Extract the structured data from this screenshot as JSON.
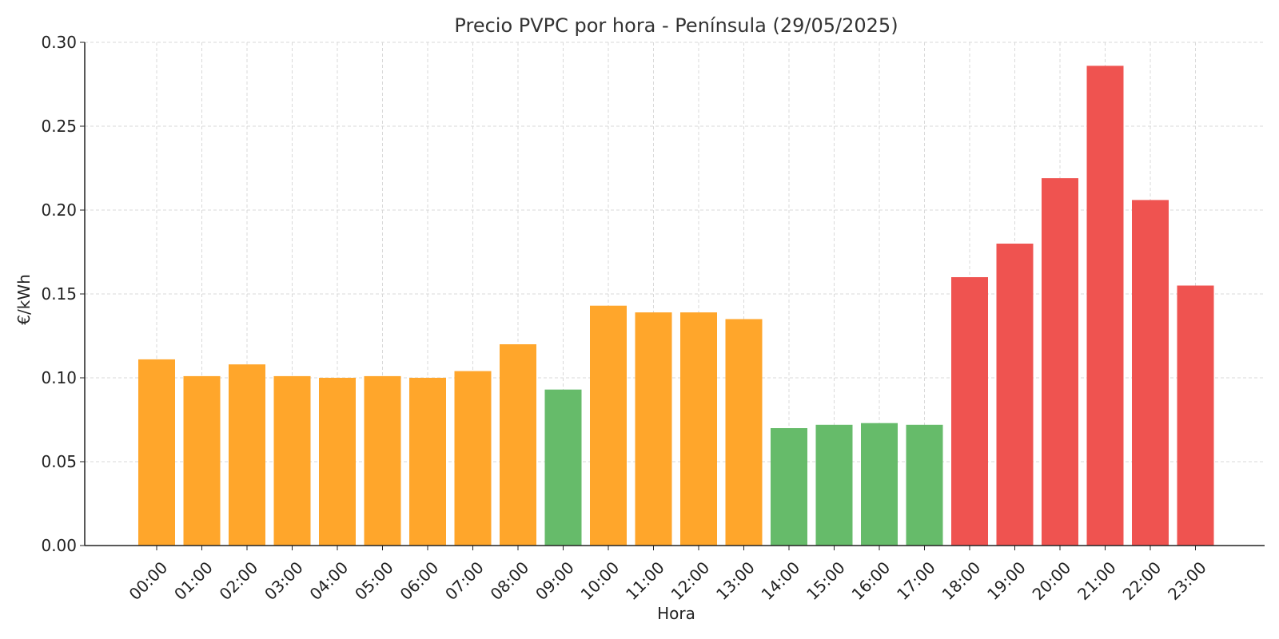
{
  "chart_data": {
    "type": "bar",
    "title": "Precio PVPC por hora - Península (29/05/2025)",
    "xlabel": "Hora",
    "ylabel": "€/kWh",
    "ylim": [
      0,
      0.3
    ],
    "yticks": [
      "0.00",
      "0.05",
      "0.10",
      "0.15",
      "0.20",
      "0.25",
      "0.30"
    ],
    "grid": true,
    "categories": [
      "00:00",
      "01:00",
      "02:00",
      "03:00",
      "04:00",
      "05:00",
      "06:00",
      "07:00",
      "08:00",
      "09:00",
      "10:00",
      "11:00",
      "12:00",
      "13:00",
      "14:00",
      "15:00",
      "16:00",
      "17:00",
      "18:00",
      "19:00",
      "20:00",
      "21:00",
      "22:00",
      "23:00"
    ],
    "values": [
      0.111,
      0.101,
      0.108,
      0.101,
      0.1,
      0.101,
      0.1,
      0.104,
      0.12,
      0.093,
      0.143,
      0.139,
      0.139,
      0.135,
      0.07,
      0.072,
      0.073,
      0.072,
      0.16,
      0.18,
      0.219,
      0.286,
      0.206,
      0.155
    ],
    "bar_colors": [
      "#ffa62b",
      "#ffa62b",
      "#ffa62b",
      "#ffa62b",
      "#ffa62b",
      "#ffa62b",
      "#ffa62b",
      "#ffa62b",
      "#ffa62b",
      "#66bb6a",
      "#ffa62b",
      "#ffa62b",
      "#ffa62b",
      "#ffa62b",
      "#66bb6a",
      "#66bb6a",
      "#66bb6a",
      "#66bb6a",
      "#ef5350",
      "#ef5350",
      "#ef5350",
      "#ef5350",
      "#ef5350",
      "#ef5350"
    ],
    "palette": {
      "medium": "#ffa62b",
      "low": "#66bb6a",
      "high": "#ef5350"
    }
  }
}
